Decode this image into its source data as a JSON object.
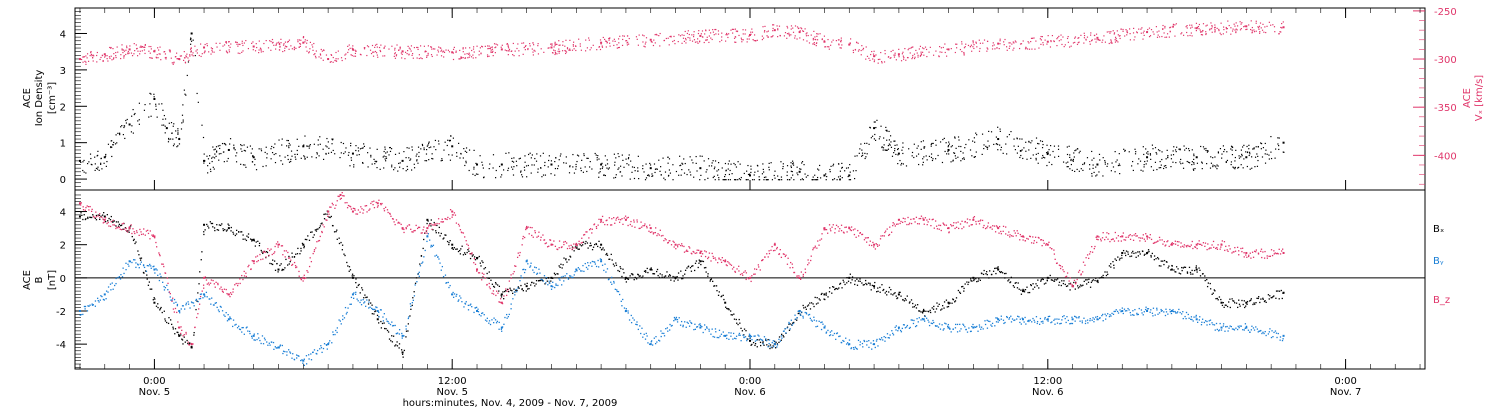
{
  "colors": {
    "density": "#000000",
    "velocity": "#e0356a",
    "bx": "#000000",
    "by": "#1a7fd6",
    "bz": "#e0356a",
    "frame": "#000000"
  },
  "xaxis": {
    "title": "hours:minutes, Nov. 4, 2009 - Nov. 7, 2009",
    "range_hours": [
      -3.2,
      51.2
    ],
    "ticks": [
      {
        "hours": 0,
        "time": "0:00",
        "date": "Nov. 5"
      },
      {
        "hours": 12,
        "time": "12:00",
        "date": "Nov. 5"
      },
      {
        "hours": 24,
        "time": "0:00",
        "date": "Nov. 6"
      },
      {
        "hours": 36,
        "time": "12:00",
        "date": "Nov. 6"
      },
      {
        "hours": 48,
        "time": "0:00",
        "date": "Nov. 7"
      }
    ]
  },
  "chart_data": [
    {
      "type": "scatter",
      "panel": "top",
      "left_axis": {
        "label_line1": "ACE",
        "label_line2": "Ion Density",
        "label_line3": "[cm⁻³]",
        "ylim": [
          -0.3,
          4.7
        ],
        "ticks": [
          "0",
          "1",
          "2",
          "3",
          "4"
        ],
        "tick_values": [
          0,
          1,
          2,
          3,
          4
        ]
      },
      "right_axis": {
        "label_line1": "ACE",
        "label_line2": "Vₓ [km/s]",
        "ylim": [
          -436,
          -247
        ],
        "ticks": [
          "-250",
          "-300",
          "-350",
          "-400"
        ],
        "tick_values": [
          -250,
          -300,
          -350,
          -400
        ]
      },
      "series": [
        {
          "key": "density",
          "x": [
            -3,
            -2,
            -1,
            0,
            0.5,
            1,
            1.5,
            2,
            3,
            4,
            6,
            8,
            10,
            12,
            13,
            14,
            16,
            18,
            20,
            22,
            24,
            26,
            27,
            28,
            29,
            30,
            32,
            34,
            36,
            38,
            40,
            42,
            44,
            45.5
          ],
          "y": [
            0.5,
            0.6,
            1.5,
            2.2,
            1.4,
            1.1,
            4.0,
            0.5,
            0.8,
            0.6,
            0.9,
            0.7,
            0.5,
            0.9,
            0.4,
            0.4,
            0.4,
            0.4,
            0.3,
            0.3,
            0.1,
            0.2,
            0.1,
            0.1,
            1.4,
            0.7,
            0.8,
            1.1,
            0.7,
            0.4,
            0.6,
            0.6,
            0.6,
            1.0
          ]
        },
        {
          "key": "velocity",
          "x": [
            -3,
            -2,
            -1,
            0,
            1,
            2,
            4,
            6,
            7,
            8,
            10,
            12,
            14,
            16,
            18,
            20,
            22,
            24,
            25,
            26,
            27,
            28,
            29,
            30,
            32,
            34,
            36,
            38,
            40,
            42,
            44,
            45.5
          ],
          "y": [
            -300,
            -295,
            -290,
            -292,
            -300,
            -288,
            -287,
            -283,
            -300,
            -290,
            -292,
            -293,
            -290,
            -288,
            -283,
            -280,
            -276,
            -275,
            -270,
            -272,
            -282,
            -285,
            -297,
            -295,
            -290,
            -284,
            -282,
            -278,
            -272,
            -268,
            -266,
            -267
          ]
        }
      ]
    },
    {
      "type": "scatter",
      "panel": "bottom",
      "left_axis": {
        "label_line1": "ACE",
        "label_line2": "B",
        "label_line3": "[nT]",
        "ylim": [
          -5.5,
          5.3
        ],
        "ticks": [
          "4",
          "2",
          "0",
          "-2",
          "-4"
        ],
        "tick_values": [
          4,
          2,
          0,
          -2,
          -4
        ]
      },
      "series": [
        {
          "key": "bx",
          "name": "Bₓ",
          "x": [
            -3,
            -2,
            -1,
            0,
            1,
            1.5,
            2,
            3,
            4,
            5,
            6,
            7,
            8,
            9,
            10,
            11,
            12,
            13,
            14,
            15,
            16,
            17,
            18,
            19,
            20,
            21,
            22,
            23,
            24,
            25,
            26,
            27,
            28,
            29,
            30,
            31,
            32,
            33,
            34,
            35,
            36,
            37,
            38,
            39,
            40,
            41,
            42,
            43,
            44,
            45.5
          ],
          "y": [
            3.7,
            3.7,
            3.0,
            -1.5,
            -3.5,
            -4.2,
            3.2,
            3.0,
            2.3,
            0.5,
            2.0,
            4.0,
            0.0,
            -2.5,
            -4.5,
            3.5,
            2.0,
            1.2,
            -1.0,
            -0.5,
            0.0,
            2.0,
            2.0,
            0.0,
            0.5,
            0.0,
            1.0,
            -1.5,
            -3.8,
            -4.0,
            -2.0,
            -1.0,
            0.0,
            -0.5,
            -1.0,
            -2.0,
            -1.5,
            0.0,
            0.5,
            -0.8,
            0.0,
            -0.5,
            -0.2,
            1.5,
            1.5,
            0.5,
            0.5,
            -1.5,
            -1.5,
            -0.9
          ]
        },
        {
          "key": "by",
          "name": "Bᵧ",
          "x": [
            -3,
            -2,
            -1,
            0,
            1,
            2,
            3,
            4,
            5,
            6,
            7,
            8,
            9,
            10,
            11,
            12,
            13,
            14,
            15,
            16,
            17,
            18,
            19,
            20,
            21,
            22,
            23,
            24,
            25,
            26,
            27,
            28,
            29,
            30,
            31,
            32,
            33,
            34,
            35,
            36,
            37,
            38,
            39,
            40,
            41,
            42,
            43,
            44,
            45.5
          ],
          "y": [
            -2.0,
            -1.0,
            1.0,
            0.5,
            -2.0,
            -1.0,
            -2.5,
            -3.5,
            -4.2,
            -5.0,
            -4.0,
            -1.0,
            -2.0,
            -3.5,
            2.5,
            -1.0,
            -2.0,
            -3.0,
            1.0,
            -0.5,
            0.5,
            1.0,
            -2.0,
            -4.0,
            -2.5,
            -3.0,
            -3.5,
            -3.5,
            -4.0,
            -2.0,
            -3.0,
            -4.0,
            -4.0,
            -3.0,
            -2.5,
            -3.0,
            -3.0,
            -2.5,
            -2.5,
            -2.5,
            -2.5,
            -2.5,
            -2.0,
            -2.0,
            -2.0,
            -2.5,
            -3.0,
            -3.0,
            -3.5
          ]
        },
        {
          "key": "bz",
          "name": "B_z",
          "x": [
            -3,
            -2,
            -1,
            0,
            1,
            1.5,
            2,
            3,
            4,
            5,
            6,
            7,
            7.5,
            8,
            9,
            10,
            11,
            12,
            13,
            14,
            15,
            16,
            17,
            18,
            19,
            20,
            21,
            22,
            23,
            24,
            25,
            26,
            27,
            28,
            29,
            30,
            31,
            32,
            33,
            34,
            35,
            36,
            37,
            38,
            39,
            40,
            41,
            42,
            43,
            44,
            45.5
          ],
          "y": [
            4.5,
            3.5,
            3.0,
            2.5,
            -3.0,
            -4.0,
            0.0,
            -1.0,
            1.0,
            2.0,
            0.0,
            4.0,
            5.0,
            4.0,
            4.5,
            3.0,
            3.0,
            4.0,
            0.5,
            -1.5,
            3.0,
            2.0,
            2.0,
            3.5,
            3.5,
            3.0,
            2.0,
            1.5,
            1.0,
            0.0,
            2.0,
            0.0,
            3.0,
            3.0,
            2.0,
            3.5,
            3.5,
            3.0,
            3.5,
            3.0,
            2.5,
            2.0,
            -0.5,
            2.5,
            2.5,
            2.5,
            2.0,
            2.0,
            2.0,
            1.5,
            1.5
          ]
        }
      ]
    }
  ]
}
